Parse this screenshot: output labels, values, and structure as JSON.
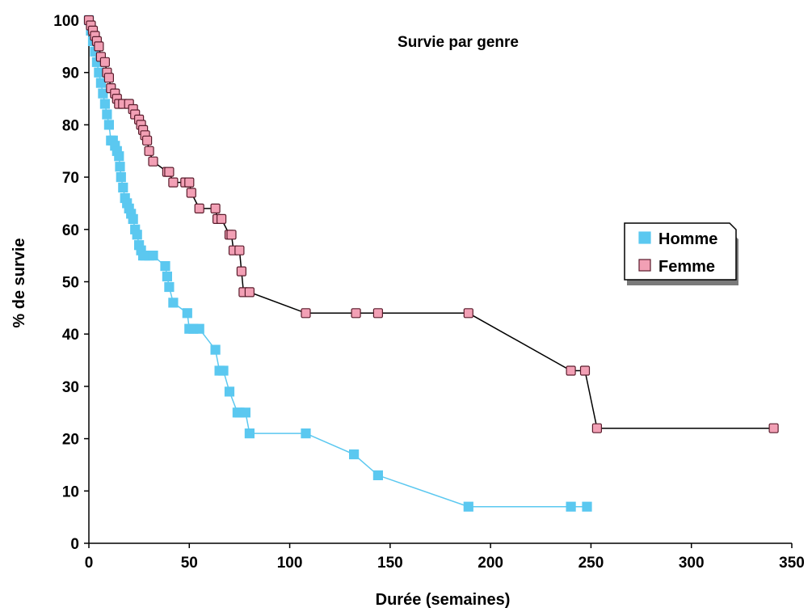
{
  "chart_data": {
    "type": "line",
    "title": "Survie par genre",
    "xlabel": "Durée (semaines)",
    "ylabel": "% de survie",
    "xlim": [
      0,
      350
    ],
    "ylim": [
      0,
      100
    ],
    "xticks": [
      "0",
      "50",
      "100",
      "150",
      "200",
      "250",
      "300",
      "350"
    ],
    "yticks": [
      "0",
      "10",
      "20",
      "30",
      "40",
      "50",
      "60",
      "70",
      "80",
      "90",
      "100"
    ],
    "grid": false,
    "legend": "right",
    "series": [
      {
        "name": "Homme",
        "color": "#5bc8f0",
        "marker_color": "#5bc8f0",
        "line_color": "#5bc8f0",
        "x": [
          0,
          1,
          2,
          3,
          4,
          5,
          6,
          7,
          8,
          9,
          10,
          11,
          12,
          13,
          14,
          15,
          15.5,
          16,
          17,
          18,
          19,
          20,
          21,
          22,
          23,
          24,
          25,
          26,
          27,
          28,
          30,
          32,
          38,
          39,
          40,
          42,
          49,
          50,
          52,
          55,
          63,
          65,
          67,
          70,
          74,
          75,
          78,
          80,
          108,
          132,
          144,
          189,
          240,
          248
        ],
        "values": [
          100,
          98,
          96,
          94,
          92,
          90,
          88,
          86,
          84,
          82,
          80,
          77,
          77,
          76,
          75,
          74,
          72,
          70,
          68,
          66,
          65,
          64,
          63,
          62,
          60,
          59,
          57,
          56,
          55,
          55,
          55,
          55,
          53,
          51,
          49,
          46,
          44,
          41,
          41,
          41,
          37,
          33,
          33,
          29,
          25,
          25,
          25,
          21,
          21,
          17,
          13,
          7,
          7,
          7
        ]
      },
      {
        "name": "Femme",
        "color": "#f2a0b5",
        "marker_color": "#f2a0b5",
        "line_color": "#000000",
        "x": [
          0,
          1,
          2,
          3,
          4,
          5,
          6,
          8,
          9,
          10,
          11,
          13,
          14,
          15,
          17,
          20,
          22,
          23,
          25,
          26,
          27,
          28,
          29,
          30,
          32,
          39,
          40,
          42,
          48,
          50,
          51,
          55,
          63,
          64,
          66,
          70,
          71,
          72,
          75,
          76,
          77,
          80,
          108,
          133,
          144,
          189,
          240,
          247,
          253,
          341
        ],
        "values": [
          100,
          99,
          98,
          97,
          96,
          95,
          93,
          92,
          90,
          89,
          87,
          86,
          85,
          84,
          84,
          84,
          83,
          82,
          81,
          80,
          79,
          78,
          77,
          75,
          73,
          71,
          71,
          69,
          69,
          69,
          67,
          64,
          64,
          62,
          62,
          59,
          59,
          56,
          56,
          52,
          48,
          48,
          44,
          44,
          44,
          44,
          33,
          33,
          22,
          22
        ]
      }
    ]
  }
}
